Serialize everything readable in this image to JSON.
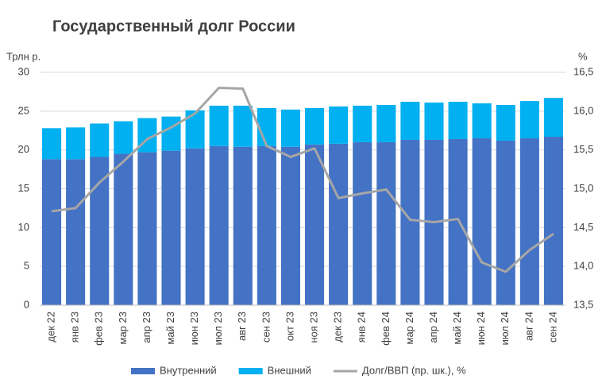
{
  "chart_data": {
    "type": "bar+line",
    "title": "Государственный долг России",
    "y_label": "Трлн р.",
    "y2_label": "%",
    "categories": [
      "дек 22",
      "янв 23",
      "фев 23",
      "мар 23",
      "апр 23",
      "май 23",
      "июн 23",
      "июл 23",
      "авг 23",
      "сен 23",
      "окт 23",
      "ноя 23",
      "дек 23",
      "янв 24",
      "фев 24",
      "мар 24",
      "апр 24",
      "май 24",
      "июн 24",
      "июл 24",
      "авг 24",
      "сен 24"
    ],
    "series": [
      {
        "name": "Внутренний",
        "type": "bar",
        "color": "#4472c4",
        "values": [
          18.8,
          18.8,
          19.1,
          19.5,
          19.7,
          19.9,
          20.2,
          20.5,
          20.4,
          20.5,
          20.4,
          20.7,
          20.8,
          21.0,
          21.0,
          21.3,
          21.3,
          21.4,
          21.5,
          21.2,
          21.5,
          21.7
        ]
      },
      {
        "name": "Внешний",
        "type": "bar",
        "color": "#00b0f0",
        "values": [
          4.0,
          4.1,
          4.3,
          4.2,
          4.4,
          4.4,
          4.9,
          5.2,
          5.3,
          4.9,
          4.8,
          4.7,
          4.8,
          4.7,
          4.8,
          4.9,
          4.8,
          4.8,
          4.5,
          4.6,
          4.8,
          5.0
        ]
      },
      {
        "name": "Долг/ВВП (пр. шк.), %",
        "type": "line",
        "axis": "y2",
        "color": "#a6a6a6",
        "values": [
          14.71,
          14.75,
          15.08,
          15.35,
          15.64,
          15.79,
          15.97,
          16.3,
          16.29,
          15.55,
          15.41,
          15.52,
          14.88,
          14.94,
          14.99,
          14.6,
          14.57,
          14.61,
          14.05,
          13.93,
          14.21,
          14.42
        ]
      }
    ],
    "stacked": true,
    "ylim": [
      0,
      30
    ],
    "yticks": [
      0,
      5,
      10,
      15,
      20,
      25,
      30
    ],
    "y2lim": [
      13.5,
      16.5
    ],
    "y2ticks": [
      {
        "value": 13.5,
        "label": "13,5"
      },
      {
        "value": 14,
        "label": "14,0"
      },
      {
        "value": 14.5,
        "label": "14,5"
      },
      {
        "value": 15,
        "label": "15,0"
      },
      {
        "value": 15.5,
        "label": "15,5"
      },
      {
        "value": 16,
        "label": "16,0"
      },
      {
        "value": 16.5,
        "label": "16,5"
      }
    ],
    "grid": true,
    "legend": "bottom"
  }
}
